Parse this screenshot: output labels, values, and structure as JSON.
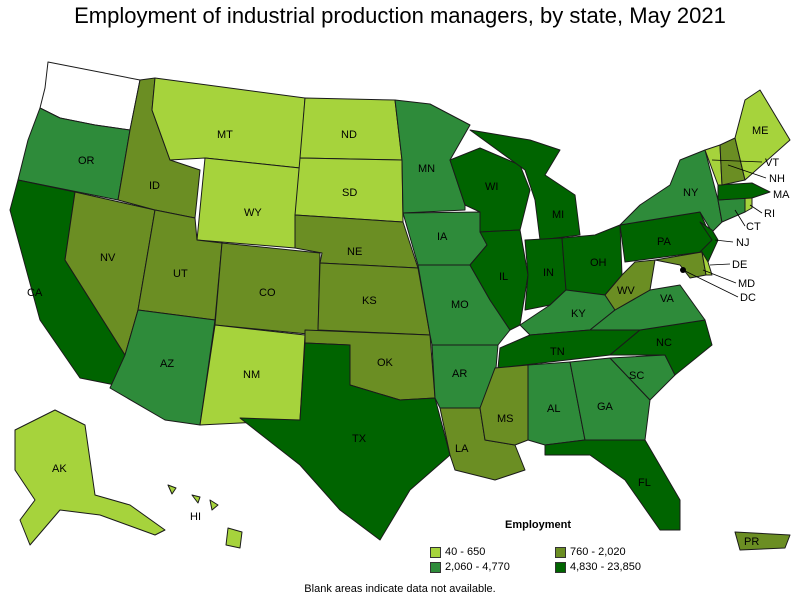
{
  "title": "Employment of industrial production managers, by state, May 2021",
  "legend": {
    "title": "Employment",
    "bins": [
      {
        "label": "40 - 650",
        "color": "#a6d33c"
      },
      {
        "label": "760 - 2,020",
        "color": "#6b8e23"
      },
      {
        "label": "2,060 - 4,770",
        "color": "#2e8b3a"
      },
      {
        "label": "4,830 - 23,850",
        "color": "#006400"
      }
    ]
  },
  "footnote": "Blank areas indicate data not available.",
  "map_data": {
    "colors": {
      "bin0": "#a6d33c",
      "bin1": "#6b8e23",
      "bin2": "#2e8b3a",
      "bin3": "#006400"
    },
    "states": [
      {
        "abbr": "WA",
        "bin": null
      },
      {
        "abbr": "OR",
        "bin": 2
      },
      {
        "abbr": "CA",
        "bin": 3
      },
      {
        "abbr": "NV",
        "bin": 1
      },
      {
        "abbr": "ID",
        "bin": 1
      },
      {
        "abbr": "MT",
        "bin": 0
      },
      {
        "abbr": "WY",
        "bin": 0
      },
      {
        "abbr": "UT",
        "bin": 1
      },
      {
        "abbr": "AZ",
        "bin": 2
      },
      {
        "abbr": "CO",
        "bin": 1
      },
      {
        "abbr": "NM",
        "bin": 0
      },
      {
        "abbr": "ND",
        "bin": 0
      },
      {
        "abbr": "SD",
        "bin": 0
      },
      {
        "abbr": "NE",
        "bin": 1
      },
      {
        "abbr": "KS",
        "bin": 1
      },
      {
        "abbr": "OK",
        "bin": 1
      },
      {
        "abbr": "TX",
        "bin": 3
      },
      {
        "abbr": "MN",
        "bin": 2
      },
      {
        "abbr": "IA",
        "bin": 2
      },
      {
        "abbr": "MO",
        "bin": 2
      },
      {
        "abbr": "AR",
        "bin": 2
      },
      {
        "abbr": "LA",
        "bin": 1
      },
      {
        "abbr": "WI",
        "bin": 3
      },
      {
        "abbr": "IL",
        "bin": 3
      },
      {
        "abbr": "MI",
        "bin": 3
      },
      {
        "abbr": "IN",
        "bin": 3
      },
      {
        "abbr": "OH",
        "bin": 3
      },
      {
        "abbr": "KY",
        "bin": 2
      },
      {
        "abbr": "TN",
        "bin": 3
      },
      {
        "abbr": "MS",
        "bin": 1
      },
      {
        "abbr": "AL",
        "bin": 2
      },
      {
        "abbr": "GA",
        "bin": 2
      },
      {
        "abbr": "FL",
        "bin": 3
      },
      {
        "abbr": "SC",
        "bin": 2
      },
      {
        "abbr": "NC",
        "bin": 3
      },
      {
        "abbr": "VA",
        "bin": 2
      },
      {
        "abbr": "WV",
        "bin": 1
      },
      {
        "abbr": "PA",
        "bin": 3
      },
      {
        "abbr": "NY",
        "bin": 2
      },
      {
        "abbr": "NJ",
        "bin": 3
      },
      {
        "abbr": "DE",
        "bin": 0
      },
      {
        "abbr": "MD",
        "bin": 1
      },
      {
        "abbr": "DC",
        "bin": 3
      },
      {
        "abbr": "CT",
        "bin": 2
      },
      {
        "abbr": "RI",
        "bin": 0
      },
      {
        "abbr": "MA",
        "bin": 3
      },
      {
        "abbr": "VT",
        "bin": 0
      },
      {
        "abbr": "NH",
        "bin": 1
      },
      {
        "abbr": "ME",
        "bin": 0
      },
      {
        "abbr": "AK",
        "bin": 0
      },
      {
        "abbr": "HI",
        "bin": 0
      },
      {
        "abbr": "PR",
        "bin": 1
      }
    ]
  }
}
